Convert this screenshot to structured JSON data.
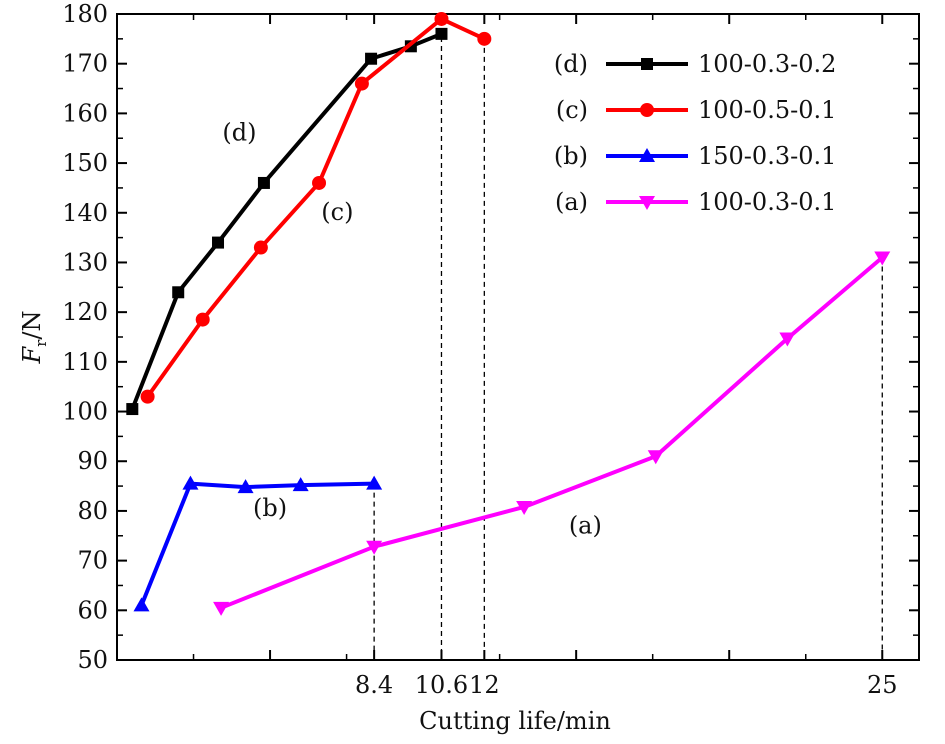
{
  "chart_data": {
    "type": "line",
    "ylabel_main": "F",
    "ylabel_sub": "r",
    "ylabel_unit": "/N",
    "xlabel": "Cutting life/min",
    "ylim": [
      50,
      180
    ],
    "xlim": [
      0,
      26.2
    ],
    "yticks": [
      50,
      60,
      70,
      80,
      90,
      100,
      110,
      120,
      130,
      140,
      150,
      160,
      170,
      180
    ],
    "xticks_labeled": [
      {
        "value": 8.4,
        "label": "8.4"
      },
      {
        "value": 10.6,
        "label": "10.6"
      },
      {
        "value": 12,
        "label": "12"
      },
      {
        "value": 25,
        "label": "25"
      }
    ],
    "xticks_major_unlabeled": [
      0,
      5,
      15,
      20
    ],
    "legend_position": "top-right",
    "grid": false,
    "series": [
      {
        "name": "100-0.3-0.2",
        "label": "(d)",
        "color": "#000000",
        "marker": "square",
        "points": [
          [
            0.5,
            100.5
          ],
          [
            2.0,
            124
          ],
          [
            3.3,
            134
          ],
          [
            4.8,
            146
          ],
          [
            8.3,
            171
          ],
          [
            9.6,
            173.5
          ],
          [
            10.6,
            176
          ]
        ]
      },
      {
        "name": "100-0.5-0.1",
        "label": "(c)",
        "color": "#ff0000",
        "marker": "circle",
        "points": [
          [
            1.0,
            103
          ],
          [
            2.8,
            118.5
          ],
          [
            4.7,
            133
          ],
          [
            6.6,
            146
          ],
          [
            8.0,
            166
          ],
          [
            10.6,
            179
          ],
          [
            12.0,
            175
          ]
        ]
      },
      {
        "name": "150-0.3-0.1",
        "label": "(b)",
        "color": "#0000ff",
        "marker": "triangle-up",
        "points": [
          [
            0.8,
            61
          ],
          [
            2.4,
            85.5
          ],
          [
            4.2,
            84.8
          ],
          [
            6.0,
            85.2
          ],
          [
            8.4,
            85.5
          ]
        ]
      },
      {
        "name": "100-0.3-0.1",
        "label": "(a)",
        "color": "#ff00ff",
        "marker": "triangle-down",
        "points": [
          [
            3.4,
            60.5
          ],
          [
            8.4,
            72.8
          ],
          [
            13.3,
            80.8
          ],
          [
            17.6,
            91
          ],
          [
            21.9,
            114.7
          ],
          [
            25.0,
            131
          ]
        ]
      }
    ],
    "annotations": [
      {
        "text": "(d)",
        "x": 4.0,
        "y": 154.5
      },
      {
        "text": "(c)",
        "x": 7.2,
        "y": 138.5
      },
      {
        "text": "(b)",
        "x": 5.0,
        "y": 79
      },
      {
        "text": "(a)",
        "x": 15.3,
        "y": 75.5
      }
    ],
    "dashed_droplines": [
      {
        "x": 8.4,
        "y": 85.5
      },
      {
        "x": 10.6,
        "y": 179
      },
      {
        "x": 12.0,
        "y": 175
      },
      {
        "x": 25.0,
        "y": 131
      }
    ]
  }
}
